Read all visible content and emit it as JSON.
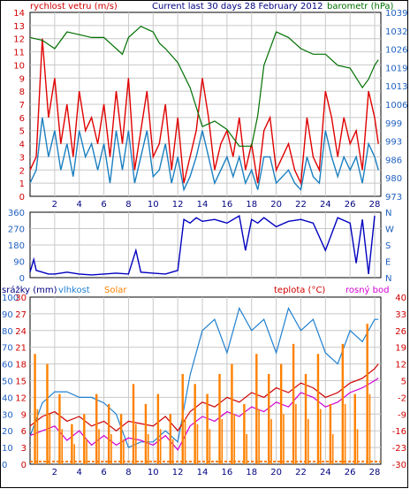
{
  "header": {
    "left_label": "rychlost vetru (m/s)",
    "title": "Current last 30 days 28 February 2012",
    "right_label": "barometr (hPa)"
  },
  "colors": {
    "wind_gust": "#e00000",
    "wind_avg": "#1a7fc0",
    "barometer": "#007000",
    "direction": "#0000c0",
    "rain": "#0000a0",
    "humidity": "#2080d0",
    "solar": "#ff8000",
    "temperature": "#d00000",
    "dewpoint": "#d000d0",
    "grid": "#c8c8c8",
    "axis_red": "#d00000",
    "axis_blue": "#2060c0"
  },
  "chart_data": [
    {
      "type": "line",
      "name": "wind-and-barometer",
      "xlabel": "",
      "x_ticks": [
        "2",
        "4",
        "6",
        "8",
        "10",
        "12",
        "14",
        "16",
        "18",
        "20",
        "22",
        "24",
        "26",
        "28"
      ],
      "xlim": [
        0,
        28.5
      ],
      "left_axis": {
        "label": "rychlost vetru (m/s)",
        "ticks": [
          "0",
          "1",
          "2",
          "3",
          "4",
          "5",
          "6",
          "7",
          "8",
          "9",
          "10",
          "11",
          "12",
          "13",
          "14"
        ],
        "ylim": [
          0,
          14
        ]
      },
      "right_axis": {
        "label": "barometr (hPa)",
        "ticks": [
          "973",
          "980",
          "986",
          "993",
          "999",
          "1006",
          "1013",
          "1019",
          "1026",
          "1032",
          "1039"
        ],
        "ylim": [
          973,
          1039
        ]
      },
      "series": [
        {
          "name": "gust",
          "axis": "left",
          "color": "#e00000",
          "x": [
            0,
            0.5,
            1,
            1.5,
            2,
            2.5,
            3,
            3.5,
            4,
            4.5,
            5,
            5.5,
            6,
            6.5,
            7,
            7.5,
            8,
            8.5,
            9,
            9.5,
            10,
            10.5,
            11,
            11.5,
            12,
            12.5,
            13,
            13.5,
            14,
            14.5,
            15,
            15.5,
            16,
            16.5,
            17,
            17.5,
            18,
            18.5,
            19,
            19.5,
            20,
            20.5,
            21,
            21.5,
            22,
            22.5,
            23,
            23.5,
            24,
            24.5,
            25,
            25.5,
            26,
            26.5,
            27,
            27.5,
            28,
            28.3
          ],
          "y": [
            2,
            3,
            12,
            6,
            9,
            4,
            7,
            3,
            8,
            5,
            6,
            4,
            7,
            3,
            8,
            4,
            9,
            2,
            5,
            8,
            3,
            4,
            7,
            2,
            6,
            1,
            3,
            5,
            9,
            6,
            2,
            4,
            5,
            3,
            6,
            2,
            4,
            1,
            5,
            6,
            2,
            3,
            4,
            2,
            1,
            6,
            3,
            2,
            8,
            6,
            3,
            6,
            4,
            5,
            2,
            8,
            6,
            4
          ]
        },
        {
          "name": "average",
          "axis": "left",
          "color": "#1a7fc0",
          "x": [
            0,
            0.5,
            1,
            1.5,
            2,
            2.5,
            3,
            3.5,
            4,
            4.5,
            5,
            5.5,
            6,
            6.5,
            7,
            7.5,
            8,
            8.5,
            9,
            9.5,
            10,
            10.5,
            11,
            11.5,
            12,
            12.5,
            13,
            13.5,
            14,
            14.5,
            15,
            15.5,
            16,
            16.5,
            17,
            17.5,
            18,
            18.5,
            19,
            19.5,
            20,
            20.5,
            21,
            21.5,
            22,
            22.5,
            23,
            23.5,
            24,
            24.5,
            25,
            25.5,
            26,
            26.5,
            27,
            27.5,
            28,
            28.3
          ],
          "y": [
            1,
            2,
            6,
            3,
            5,
            2,
            4,
            1.5,
            5,
            3,
            4,
            2,
            4,
            1,
            5,
            2,
            5,
            1,
            3,
            5,
            1.5,
            2,
            4,
            1,
            3,
            0.5,
            1.5,
            3,
            5,
            3,
            1,
            2,
            3,
            1.5,
            3,
            1,
            2,
            0.5,
            3,
            3,
            1,
            1.5,
            2,
            1,
            0.5,
            3,
            1.5,
            1,
            5,
            3,
            1.5,
            3,
            2,
            3,
            1,
            4,
            3,
            2
          ]
        },
        {
          "name": "barometer",
          "axis": "right",
          "color": "#007000",
          "x": [
            0,
            1,
            2,
            3,
            4,
            5,
            6,
            7,
            7.5,
            8,
            9,
            9.5,
            10,
            10.5,
            11,
            12,
            13,
            13.5,
            14,
            15,
            16,
            17,
            18,
            18.5,
            19,
            20,
            21,
            22,
            23,
            24,
            25,
            26,
            27,
            27.5,
            28,
            28.3
          ],
          "y": [
            1030,
            1029,
            1026,
            1032,
            1031,
            1030,
            1030,
            1026,
            1024,
            1030,
            1034,
            1033,
            1032,
            1028,
            1026,
            1021,
            1012,
            1005,
            998,
            1000,
            997,
            991,
            991,
            1002,
            1020,
            1032,
            1030,
            1026,
            1024,
            1024,
            1020,
            1019,
            1012,
            1015,
            1020,
            1022
          ]
        }
      ]
    },
    {
      "type": "line",
      "name": "wind-direction",
      "left_axis": {
        "ticks": [
          "0",
          "90",
          "180",
          "270",
          "360"
        ],
        "ylim": [
          0,
          360
        ]
      },
      "right_axis": {
        "ticks": [
          "N",
          "E",
          "S",
          "W",
          "N"
        ]
      },
      "series": [
        {
          "name": "direction",
          "color": "#0000c0",
          "x": [
            0,
            0.3,
            0.5,
            1,
            1.5,
            2,
            3,
            4,
            5,
            6,
            7,
            8,
            8.6,
            9,
            10,
            11,
            12,
            12.5,
            13,
            13.5,
            14,
            15,
            16,
            17,
            17.5,
            18,
            18.5,
            19,
            20,
            21,
            22,
            23,
            24,
            25,
            26,
            26.5,
            27,
            27.5,
            28
          ],
          "y": [
            30,
            100,
            40,
            30,
            20,
            20,
            30,
            20,
            15,
            20,
            25,
            20,
            150,
            30,
            25,
            20,
            40,
            320,
            300,
            330,
            310,
            320,
            300,
            340,
            150,
            320,
            300,
            330,
            280,
            310,
            320,
            300,
            150,
            330,
            300,
            80,
            320,
            20,
            340
          ]
        }
      ]
    },
    {
      "type": "line",
      "name": "rain-humidity-solar-temperature",
      "header_labels": {
        "rain": "srážky (mm)",
        "humidity": "vlhkost",
        "solar": "Solar",
        "temperature": "teplota (°C)",
        "dewpoint": "rosný bod"
      },
      "rain_axis": {
        "ticks": [
          "0",
          "10",
          "20",
          "30",
          "40",
          "50",
          "60",
          "70",
          "80",
          "90",
          "100"
        ]
      },
      "humidity_axis": {
        "ticks": [
          "0",
          "3",
          "6",
          "9",
          "12",
          "15",
          "18",
          "21",
          "24",
          "27",
          "30"
        ]
      },
      "temp_axis": {
        "ticks": [
          "-30",
          "-23",
          "-16",
          "-9",
          "-2",
          "5",
          "12",
          "19",
          "26",
          "33",
          "40"
        ],
        "ylim": [
          -30,
          40
        ]
      },
      "series": [
        {
          "name": "humidity",
          "color": "#2080d0",
          "x": [
            0,
            1,
            2,
            3,
            4,
            5,
            6,
            7,
            8,
            9,
            10,
            11,
            12,
            13,
            14,
            15,
            16,
            17,
            18,
            19,
            20,
            21,
            22,
            23,
            24,
            25,
            26,
            27,
            28,
            28.3
          ],
          "y": [
            5,
            11,
            13,
            13,
            12,
            12,
            11,
            9,
            3,
            4,
            4,
            6,
            4,
            16,
            24,
            26,
            20,
            28,
            24,
            26,
            20,
            28,
            24,
            26,
            20,
            18,
            24,
            22,
            26,
            26
          ]
        },
        {
          "name": "temperature",
          "color": "#d00000",
          "x": [
            0,
            1,
            2,
            3,
            4,
            5,
            6,
            7,
            8,
            9,
            10,
            11,
            12,
            13,
            14,
            15,
            16,
            17,
            18,
            19,
            20,
            21,
            22,
            23,
            24,
            25,
            26,
            27,
            28,
            28.3
          ],
          "y": [
            -14,
            -10,
            -8,
            -12,
            -10,
            -14,
            -12,
            -16,
            -12,
            -13,
            -14,
            -10,
            -16,
            -8,
            -4,
            -6,
            -2,
            -4,
            0,
            -2,
            2,
            0,
            4,
            2,
            -2,
            0,
            4,
            6,
            10,
            12
          ]
        },
        {
          "name": "dewpoint",
          "color": "#d000d0",
          "x": [
            0,
            1,
            2,
            3,
            4,
            5,
            6,
            7,
            8,
            9,
            10,
            11,
            12,
            13,
            14,
            15,
            16,
            17,
            18,
            19,
            20,
            21,
            22,
            23,
            24,
            25,
            26,
            27,
            28,
            28.3
          ],
          "y": [
            -18,
            -16,
            -14,
            -20,
            -16,
            -22,
            -18,
            -22,
            -19,
            -20,
            -22,
            -18,
            -24,
            -14,
            -10,
            -12,
            -8,
            -10,
            -6,
            -8,
            -4,
            -6,
            0,
            -2,
            -6,
            -4,
            0,
            2,
            5,
            6
          ]
        },
        {
          "name": "solar",
          "color": "#ff8000",
          "days": [
            0.4,
            1.4,
            2.4,
            3.4,
            4.4,
            5.4,
            6.4,
            7.4,
            8.4,
            9.4,
            10.4,
            11.4,
            12.4,
            13.4,
            14.4,
            15.4,
            16.4,
            17.4,
            18.4,
            19.4,
            20.4,
            21.4,
            22.4,
            23.4,
            24.4,
            25.4,
            26.4,
            27.4
          ],
          "peaks": [
            22,
            20,
            14,
            8,
            10,
            14,
            12,
            10,
            16,
            12,
            14,
            10,
            18,
            16,
            14,
            18,
            20,
            12,
            22,
            18,
            20,
            24,
            18,
            22,
            12,
            24,
            14,
            28
          ]
        }
      ]
    }
  ]
}
